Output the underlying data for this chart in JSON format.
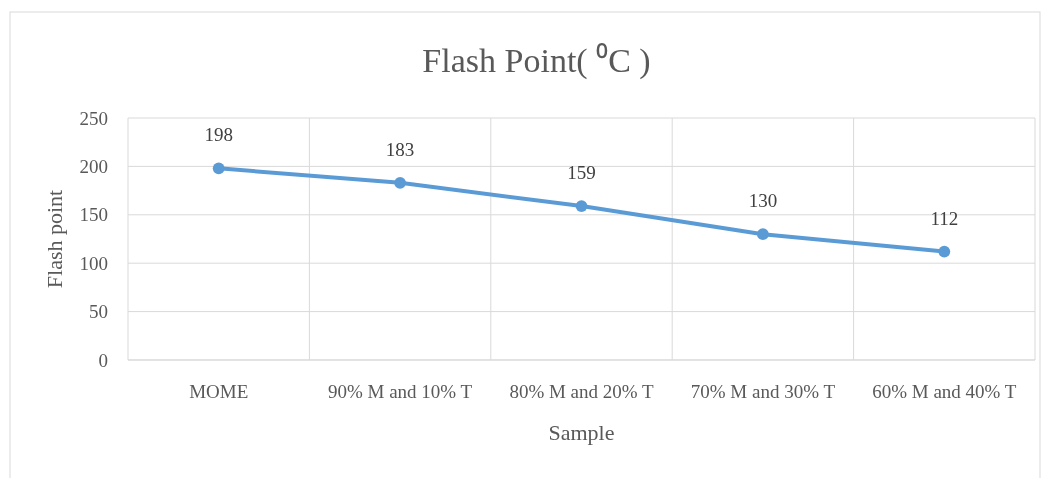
{
  "chart_data": {
    "type": "line",
    "title": "Flash Point( ⁰C )",
    "xlabel": "Sample",
    "ylabel": "Flash point",
    "categories": [
      "MOME",
      "90% M and 10% T",
      "80% M and 20% T",
      "70% M and 30% T",
      "60% M and 40% T"
    ],
    "series": [
      {
        "color": "#5b9bd5",
        "values": [
          198,
          183,
          159,
          130,
          112
        ]
      }
    ],
    "ylim": [
      0,
      250
    ],
    "yticks": [
      0,
      50,
      100,
      150,
      200,
      250
    ],
    "grid": true,
    "marker": "circle",
    "data_labels": true
  }
}
